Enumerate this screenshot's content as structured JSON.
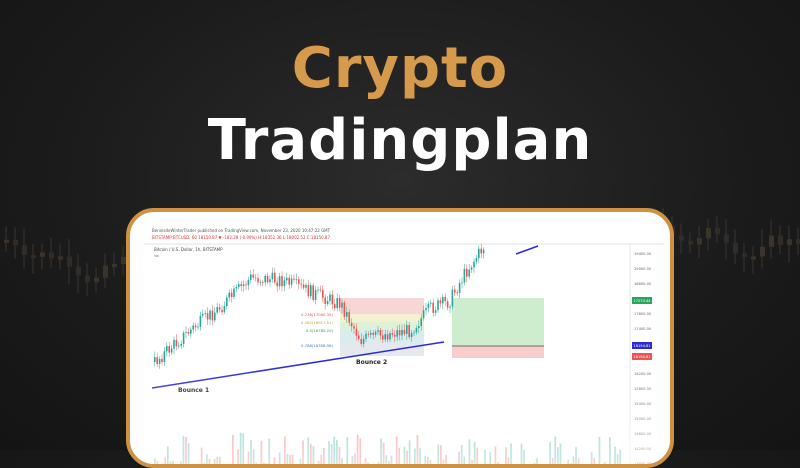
{
  "headline": {
    "line1": "Crypto",
    "line2": "Tradingplan"
  },
  "colors": {
    "accent": "#d69a4c",
    "card_border": "#cf9243",
    "candle_up": "#26a69a",
    "candle_down": "#ef5350",
    "trendline": "#2b2bd6",
    "profit_zone": "#c8ebc9",
    "loss_zone": "#f7c7c7"
  },
  "chart": {
    "header_line1": "BennisdeWinterTrader published on TradingView.com, November 23, 2020 10:47:22 GMT",
    "header_line2": "BITSTAMP:BTCUSD, 60  18150.87  ▼  -182.28  (-0.99%)  H:18352.36  L:18002.52  C:18150.87",
    "symbol_line": "Bitcoin / U.S. Dollar, 1h, BITSTAMP",
    "symbol_sub": "Vol",
    "annotations": {
      "bounce1": "Bounce 1",
      "bounce2": "Bounce 2"
    },
    "fib_levels": [
      {
        "label": "0.236(17090.35)"
      },
      {
        "label": "0.382(16917.51)"
      },
      {
        "label": "0.5(16780.20)"
      },
      {
        "label": "0.786(16358.98)"
      }
    ],
    "price_ticks": [
      "19400.00",
      "19000.00",
      "18600.00",
      "18200.00",
      "17800.00",
      "17400.00",
      "17000.00",
      "16600.00",
      "16200.00",
      "15800.00",
      "15400.00",
      "15000.00",
      "14600.00",
      "14200.00",
      "13800.00"
    ],
    "price_tags": [
      {
        "text": "17274.44",
        "kind": "target"
      },
      {
        "text": "16194.81",
        "kind": "entry"
      },
      {
        "text": "16194.81",
        "kind": "stop"
      }
    ]
  }
}
